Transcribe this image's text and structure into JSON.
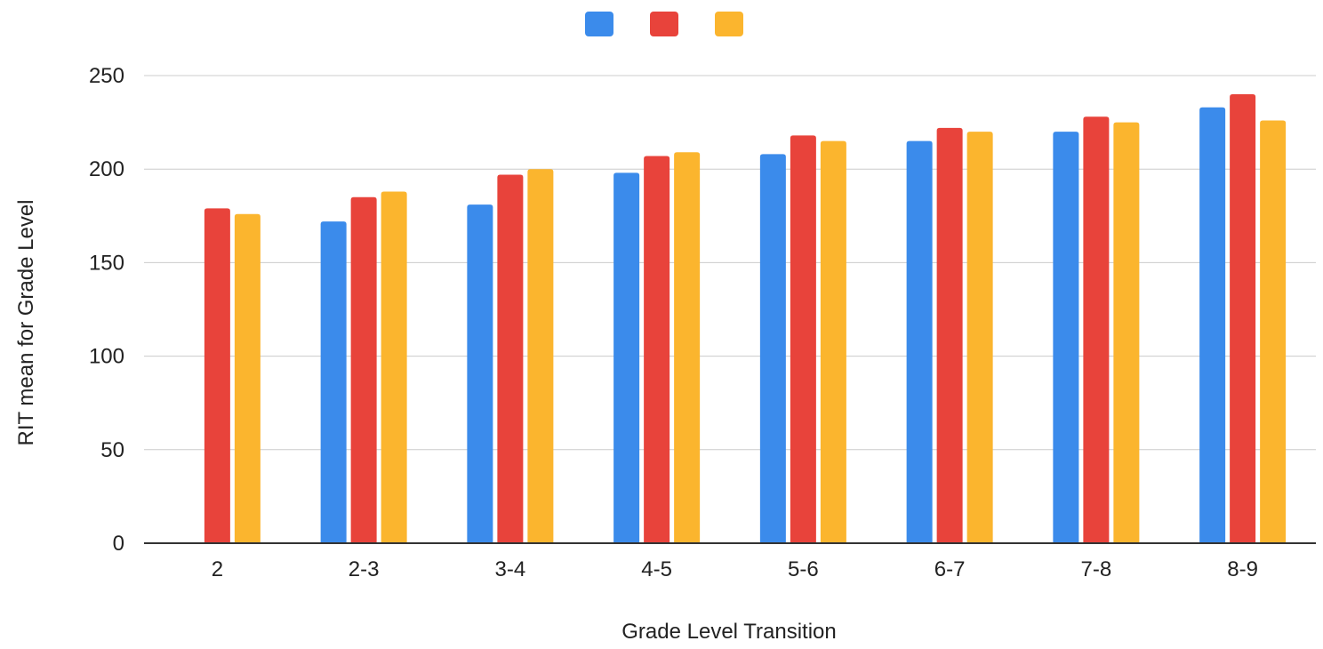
{
  "chart_data": {
    "type": "bar",
    "title": "",
    "xlabel": "Grade Level Transition",
    "ylabel": "RIT mean for Grade Level",
    "categories": [
      "2",
      "2-3",
      "3-4",
      "4-5",
      "5-6",
      "6-7",
      "7-8",
      "8-9"
    ],
    "series": [
      {
        "color": "#3b8beb",
        "values": [
          null,
          172,
          181,
          198,
          208,
          215,
          220,
          233
        ]
      },
      {
        "color": "#e8433b",
        "values": [
          179,
          185,
          197,
          207,
          218,
          222,
          228,
          240
        ]
      },
      {
        "color": "#fbb52e",
        "values": [
          176,
          188,
          200,
          209,
          215,
          220,
          225,
          226
        ]
      }
    ],
    "ylim": [
      0,
      250
    ],
    "yticks": [
      0,
      50,
      100,
      150,
      200,
      250
    ],
    "grid": true,
    "legend_position": "top-center"
  }
}
